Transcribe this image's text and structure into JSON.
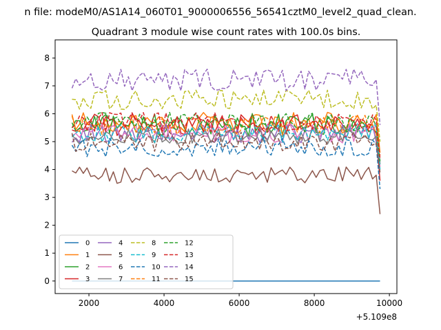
{
  "figure": {
    "suptitle": "n file: modeM0/AS1A14_060T01_9000006556_56541cztM0_level2_quad_clean.",
    "title": "Quadrant 3 module wise count rates with 100.0s bins."
  },
  "chart_data": {
    "type": "line",
    "title": "Quadrant 3 module wise count rates with 100.0s bins.",
    "xlabel": "",
    "ylabel": "",
    "x_offset_label": "+5.109e8",
    "xlim": [
      1100,
      10200
    ],
    "ylim": [
      -0.45,
      8.65
    ],
    "xticks": [
      2000,
      4000,
      6000,
      8000,
      10000
    ],
    "xtick_labels": [
      "2000",
      "4000",
      "6000",
      "8000",
      "10000"
    ],
    "yticks": [
      0,
      1,
      2,
      3,
      4,
      5,
      6,
      7,
      8
    ],
    "ytick_labels": [
      "0",
      "1",
      "2",
      "3",
      "4",
      "5",
      "6",
      "7",
      "8"
    ],
    "grid": false,
    "legend": {
      "placement": "lower-left",
      "columns": 5
    },
    "x_start": 1550,
    "x_end": 9750,
    "x_step": 100,
    "series": [
      {
        "name": "0",
        "color": "#1f77b4",
        "dash": false,
        "base": 0.0,
        "amp": 0.0,
        "end": 0.0
      },
      {
        "name": "1",
        "color": "#ff7f0e",
        "dash": false,
        "base": 5.7,
        "amp": 0.35,
        "end": 4.6
      },
      {
        "name": "2",
        "color": "#2ca02c",
        "dash": false,
        "base": 5.6,
        "amp": 0.4,
        "end": 4.2
      },
      {
        "name": "3",
        "color": "#d62728",
        "dash": false,
        "base": 5.6,
        "amp": 0.4,
        "end": 3.6
      },
      {
        "name": "4",
        "color": "#9467bd",
        "dash": false,
        "base": 5.3,
        "amp": 0.35,
        "end": 4.3
      },
      {
        "name": "5",
        "color": "#8c564b",
        "dash": false,
        "base": 3.8,
        "amp": 0.3,
        "end": 2.4
      },
      {
        "name": "6",
        "color": "#e377c2",
        "dash": false,
        "base": 5.3,
        "amp": 0.35,
        "end": 4.1
      },
      {
        "name": "7",
        "color": "#7f7f7f",
        "dash": false,
        "base": 5.2,
        "amp": 0.3,
        "end": 4.2
      },
      {
        "name": "8",
        "color": "#bcbd22",
        "dash": true,
        "base": 6.5,
        "amp": 0.35,
        "end": 5.0
      },
      {
        "name": "9",
        "color": "#17becf",
        "dash": true,
        "base": 5.3,
        "amp": 0.35,
        "end": 4.0
      },
      {
        "name": "10",
        "color": "#1f77b4",
        "dash": true,
        "base": 4.8,
        "amp": 0.35,
        "end": 3.3
      },
      {
        "name": "11",
        "color": "#ff7f0e",
        "dash": true,
        "base": 5.6,
        "amp": 0.35,
        "end": 4.5
      },
      {
        "name": "12",
        "color": "#2ca02c",
        "dash": true,
        "base": 5.7,
        "amp": 0.35,
        "end": 4.3
      },
      {
        "name": "13",
        "color": "#d62728",
        "dash": true,
        "base": 5.7,
        "amp": 0.35,
        "end": 4.4
      },
      {
        "name": "14",
        "color": "#9467bd",
        "dash": true,
        "base": 7.2,
        "amp": 0.4,
        "end": 5.6
      },
      {
        "name": "15",
        "color": "#8c564b",
        "dash": true,
        "base": 5.0,
        "amp": 0.35,
        "end": 3.9
      }
    ]
  }
}
